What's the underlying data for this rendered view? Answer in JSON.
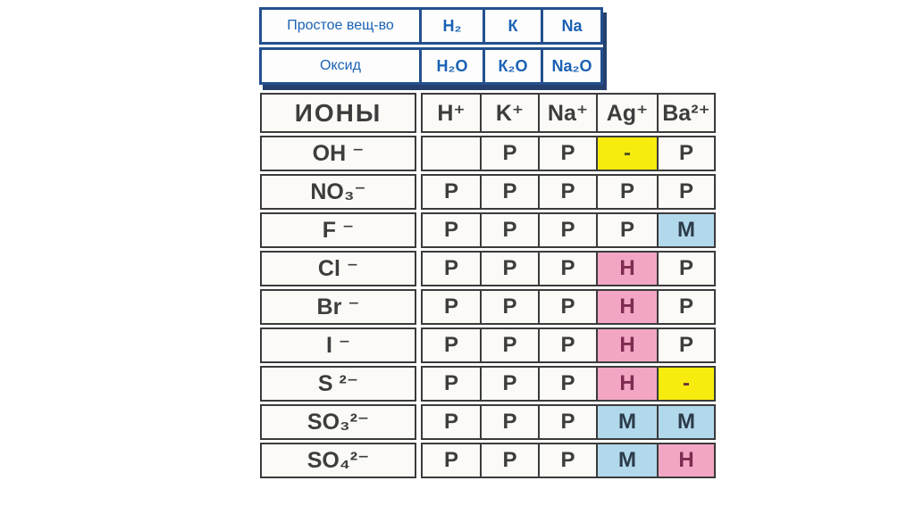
{
  "colors": {
    "accent_blue_text": "#1a61b4",
    "accent_blue_border": "#24508e",
    "table_border": "#3b3b3b",
    "cell_white": "#fbfaf6",
    "cell_yellow": "#f7ec0d",
    "cell_pink": "#f3a6c3",
    "cell_blue": "#b2d8ec",
    "letter_p": "#3d3d3d",
    "letter_h": "#7d2b50",
    "letter_m": "#2b3b4a"
  },
  "reference_table": {
    "rows": [
      {
        "label": "Простое вещ-во",
        "values": [
          "H₂",
          "К",
          "Na"
        ]
      },
      {
        "label": "Оксид",
        "values": [
          "H₂O",
          "К₂O",
          "Na₂O"
        ]
      }
    ]
  },
  "ions_table": {
    "header": {
      "label": "ИОНЫ",
      "columns": [
        "H⁺",
        "K⁺",
        "Na⁺",
        "Ag⁺",
        "Ba²⁺"
      ]
    },
    "rows": [
      {
        "label": "OH ⁻",
        "cells": [
          {
            "v": "",
            "bg": "white"
          },
          {
            "v": "P",
            "bg": "white"
          },
          {
            "v": "P",
            "bg": "white"
          },
          {
            "v": "-",
            "bg": "yellow",
            "fg": "#55521d"
          },
          {
            "v": "P",
            "bg": "white"
          }
        ]
      },
      {
        "label": "NO₃⁻",
        "cells": [
          {
            "v": "P",
            "bg": "white"
          },
          {
            "v": "P",
            "bg": "white"
          },
          {
            "v": "P",
            "bg": "white"
          },
          {
            "v": "P",
            "bg": "white"
          },
          {
            "v": "P",
            "bg": "white"
          }
        ]
      },
      {
        "label": "F ⁻",
        "cells": [
          {
            "v": "P",
            "bg": "white"
          },
          {
            "v": "P",
            "bg": "white"
          },
          {
            "v": "P",
            "bg": "white"
          },
          {
            "v": "P",
            "bg": "white"
          },
          {
            "v": "M",
            "bg": "blue"
          }
        ]
      },
      {
        "label": "Cl ⁻",
        "cells": [
          {
            "v": "P",
            "bg": "white"
          },
          {
            "v": "P",
            "bg": "white"
          },
          {
            "v": "P",
            "bg": "white"
          },
          {
            "v": "H",
            "bg": "pink"
          },
          {
            "v": "P",
            "bg": "white"
          }
        ]
      },
      {
        "label": "Br ⁻",
        "cells": [
          {
            "v": "P",
            "bg": "white"
          },
          {
            "v": "P",
            "bg": "white"
          },
          {
            "v": "P",
            "bg": "white"
          },
          {
            "v": "H",
            "bg": "pink"
          },
          {
            "v": "P",
            "bg": "white"
          }
        ]
      },
      {
        "label": "I ⁻",
        "cells": [
          {
            "v": "P",
            "bg": "white"
          },
          {
            "v": "P",
            "bg": "white"
          },
          {
            "v": "P",
            "bg": "white"
          },
          {
            "v": "H",
            "bg": "pink"
          },
          {
            "v": "P",
            "bg": "white"
          }
        ]
      },
      {
        "label": "S ²⁻",
        "cells": [
          {
            "v": "P",
            "bg": "white"
          },
          {
            "v": "P",
            "bg": "white"
          },
          {
            "v": "P",
            "bg": "white"
          },
          {
            "v": "H",
            "bg": "pink"
          },
          {
            "v": "-",
            "bg": "yellow",
            "fg": "#6e3340"
          }
        ]
      },
      {
        "label": "SO₃²⁻",
        "cells": [
          {
            "v": "P",
            "bg": "white"
          },
          {
            "v": "P",
            "bg": "white"
          },
          {
            "v": "P",
            "bg": "white"
          },
          {
            "v": "M",
            "bg": "blue"
          },
          {
            "v": "M",
            "bg": "blue"
          }
        ]
      },
      {
        "label": "SO₄²⁻",
        "cells": [
          {
            "v": "P",
            "bg": "white"
          },
          {
            "v": "P",
            "bg": "white"
          },
          {
            "v": "P",
            "bg": "white"
          },
          {
            "v": "M",
            "bg": "blue"
          },
          {
            "v": "H",
            "bg": "pink"
          }
        ]
      }
    ]
  }
}
